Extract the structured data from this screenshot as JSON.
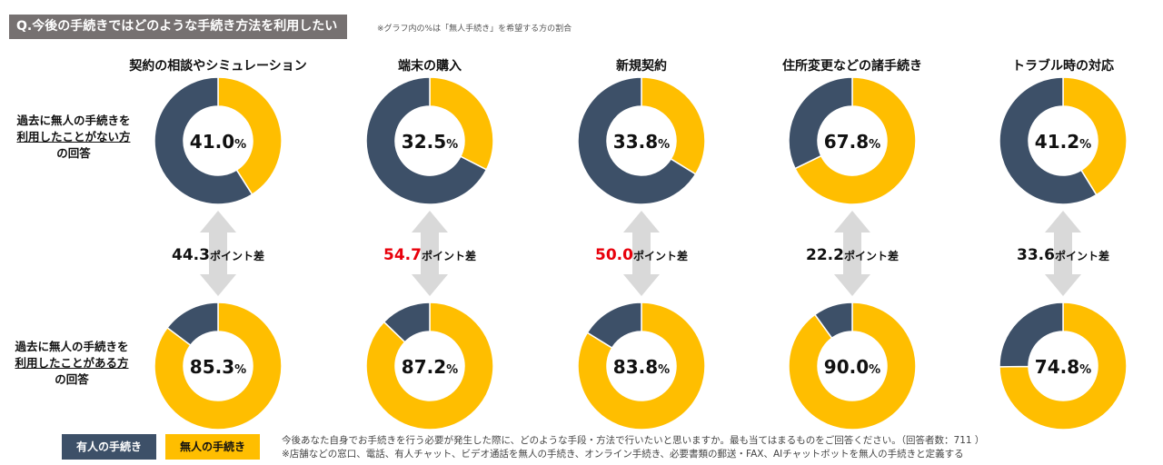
{
  "header": {
    "title": "Q.今後の手続きではどのような手続き方法を利用したいか",
    "note": "※グラフ内の%は「無人手続き」を希望する方の割合"
  },
  "row_labels": {
    "top": {
      "line1": "過去に無人の手続きを",
      "line2": "利用したことがない方",
      "line3": "の回答"
    },
    "bottom": {
      "line1": "過去に無人の手続きを",
      "line2": "利用したことがある方",
      "line3": "の回答"
    }
  },
  "colors": {
    "staffed": "#3D5068",
    "unstaffed": "#FFBE00",
    "arrow": "#D9D9D9",
    "highlight": "#E8000B"
  },
  "chart_data": {
    "type": "donut",
    "unit": "%",
    "categories": [
      "契約の相談やシミュレーション",
      "端末の購入",
      "新規契約",
      "住所変更などの諸手続き",
      "トラブル時の対応"
    ],
    "series": [
      {
        "name": "過去に無人の手続きを利用したことがない方の回答",
        "values": [
          41.0,
          32.5,
          33.8,
          67.8,
          41.2
        ]
      },
      {
        "name": "過去に無人の手続きを利用したことがある方の回答",
        "values": [
          85.3,
          87.2,
          83.8,
          90.0,
          74.8
        ]
      }
    ],
    "differences": [
      {
        "value": "44.3",
        "suffix": "ポイント差",
        "highlight": false
      },
      {
        "value": "54.7",
        "suffix": "ポイント差",
        "highlight": true
      },
      {
        "value": "50.0",
        "suffix": "ポイント差",
        "highlight": true
      },
      {
        "value": "22.2",
        "suffix": "ポイント差",
        "highlight": false
      },
      {
        "value": "33.6",
        "suffix": "ポイント差",
        "highlight": false
      }
    ]
  },
  "legend": {
    "staffed": "有人の手続き",
    "unstaffed": "無人の手続き"
  },
  "footer": {
    "line1": "今後あなた自身でお手続きを行う必要が発生した際に、どのような手段・方法で行いたいと思いますか。最も当てはまるものをご回答ください。（回答者数：711 ）",
    "line2": "※店舗などの窓口、電話、有人チャット、ビデオ通話を無人の手続き、オンライン手続き、必要書類の郵送・FAX、AIチャットボットを無人の手続きと定義する"
  }
}
